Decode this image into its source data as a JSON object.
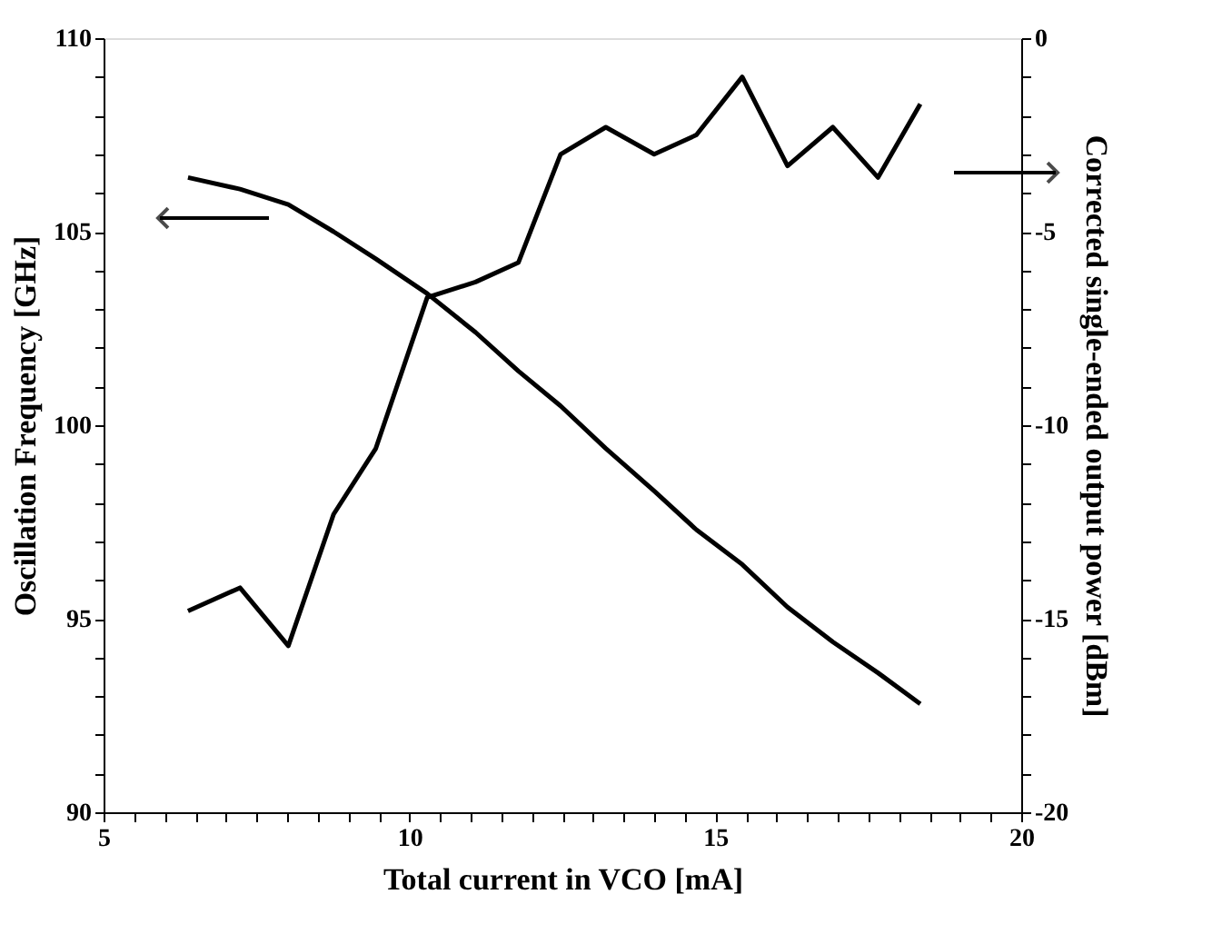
{
  "chart_data": {
    "type": "line",
    "xlabel": "Total current in VCO [mA]",
    "ylabel": "Oscillation Frequency [GHz]",
    "y2label": "Corrected single-ended output power [dBm]",
    "x": [
      6.38,
      7.23,
      8.02,
      8.76,
      9.45,
      10.29,
      11.08,
      11.78,
      12.47,
      13.21,
      14.0,
      14.69,
      15.44,
      16.18,
      16.92,
      17.66,
      18.35
    ],
    "series": [
      {
        "color": "#000000",
        "values": [
          106.4,
          106.1,
          105.7,
          105.0,
          104.3,
          103.4,
          102.4,
          101.4,
          100.5,
          99.4,
          98.3,
          97.3,
          96.4,
          95.3,
          94.4,
          93.6,
          92.8
        ]
      },
      {
        "color": "#000000",
        "axis": "y2",
        "values": [
          -14.8,
          -14.2,
          -15.7,
          -12.3,
          -10.6,
          -6.7,
          -6.3,
          -5.8,
          -3.0,
          -2.3,
          -3.0,
          -2.5,
          -1.0,
          -3.3,
          -2.3,
          -3.6,
          -1.7
        ]
      }
    ],
    "xlim": [
      5,
      20
    ],
    "xticks": [
      5,
      {
        "value": 5.5,
        "label": null
      },
      {
        "value": 6,
        "label": null
      },
      {
        "value": 6.5,
        "label": null
      },
      {
        "value": 7,
        "label": null
      },
      {
        "value": 7.5,
        "label": null
      },
      {
        "value": 8,
        "label": null
      },
      {
        "value": 8.5,
        "label": null
      },
      {
        "value": 9,
        "label": null
      },
      {
        "value": 9.5,
        "label": null
      },
      10,
      {
        "value": 10.5,
        "label": null
      },
      {
        "value": 11,
        "label": null
      },
      {
        "value": 11.5,
        "label": null
      },
      {
        "value": 12,
        "label": null
      },
      {
        "value": 12.5,
        "label": null
      },
      {
        "value": 13,
        "label": null
      },
      {
        "value": 13.5,
        "label": null
      },
      {
        "value": 14,
        "label": null
      },
      {
        "value": 14.5,
        "label": null
      },
      15,
      {
        "value": 15.5,
        "label": null
      },
      {
        "value": 16,
        "label": null
      },
      {
        "value": 16.5,
        "label": null
      },
      {
        "value": 17,
        "label": null
      },
      {
        "value": 17.5,
        "label": null
      },
      {
        "value": 18,
        "label": null
      },
      {
        "value": 18.5,
        "label": null
      },
      {
        "value": 19,
        "label": null
      },
      {
        "value": 19.5,
        "label": null
      },
      20
    ],
    "ylim": [
      90,
      110
    ],
    "yticks": [
      90,
      {
        "value": 91,
        "label": null
      },
      {
        "value": 92,
        "label": null
      },
      {
        "value": 93,
        "label": null
      },
      {
        "value": 94,
        "label": null
      },
      95,
      {
        "value": 96,
        "label": null
      },
      {
        "value": 97,
        "label": null
      },
      {
        "value": 98,
        "label": null
      },
      {
        "value": 99,
        "label": null
      },
      100,
      {
        "value": 101,
        "label": null
      },
      {
        "value": 102,
        "label": null
      },
      {
        "value": 103,
        "label": null
      },
      {
        "value": 104,
        "label": null
      },
      105,
      {
        "value": 106,
        "label": null
      },
      {
        "value": 107,
        "label": null
      },
      {
        "value": 108,
        "label": null
      },
      {
        "value": 109,
        "label": null
      },
      110
    ],
    "y2lim": [
      -20,
      0
    ],
    "y2ticks": [
      -20,
      {
        "value": -19,
        "label": null
      },
      {
        "value": -18,
        "label": null
      },
      {
        "value": -17,
        "label": null
      },
      {
        "value": -16,
        "label": null
      },
      -15,
      {
        "value": -14,
        "label": null
      },
      {
        "value": -13,
        "label": null
      },
      {
        "value": -12,
        "label": null
      },
      {
        "value": -11,
        "label": null
      },
      -10,
      {
        "value": -9,
        "label": null
      },
      {
        "value": -8,
        "label": null
      },
      {
        "value": -7,
        "label": null
      },
      {
        "value": -6,
        "label": null
      },
      -5,
      {
        "value": -4,
        "label": null
      },
      {
        "value": -3,
        "label": null
      },
      {
        "value": -2,
        "label": null
      },
      {
        "value": -1,
        "label": null
      },
      0
    ],
    "grid": false,
    "line_style": "solid",
    "marker": "none"
  }
}
